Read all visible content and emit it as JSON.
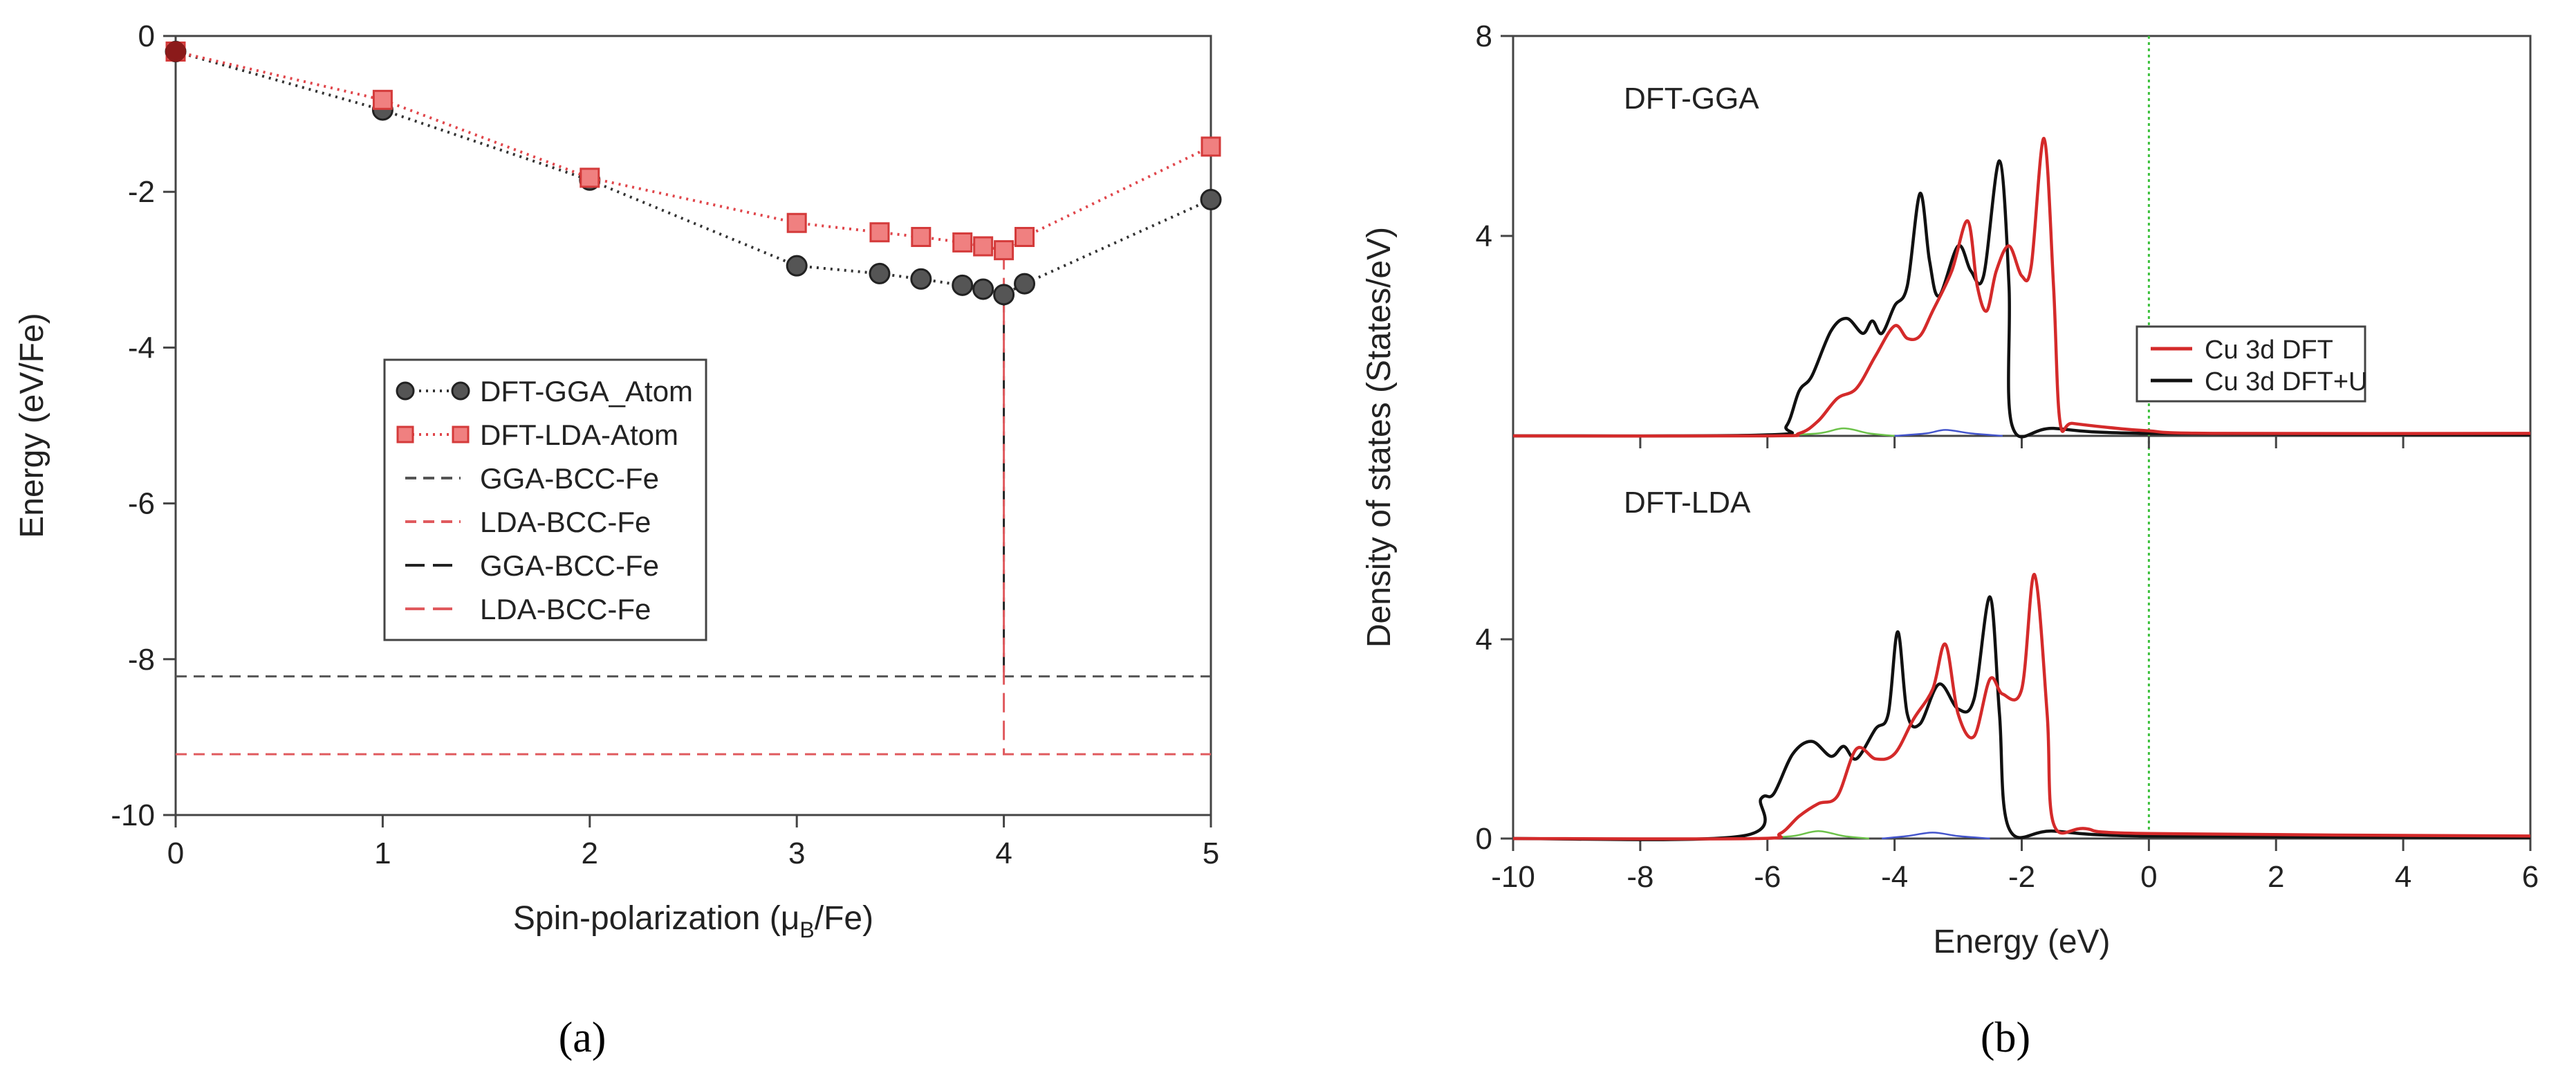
{
  "chart_data": [
    {
      "type": "line",
      "panel_label": "a",
      "xlabel_parts": [
        "Spin-polarization (μ",
        "B",
        "/Fe)"
      ],
      "ylabel": "Energy (eV/Fe)",
      "xlim": [
        0,
        5
      ],
      "ylim": [
        -10,
        0
      ],
      "xticks": [
        "0",
        "1",
        "2",
        "3",
        "4",
        "5"
      ],
      "yticks": [
        "0",
        "-2",
        "-4",
        "-6",
        "-8",
        "-10"
      ],
      "legend_position": "center-left",
      "series": [
        {
          "name": "DFT-GGA_Atom",
          "color": "#333333",
          "marker": "circle",
          "style": "dotted",
          "x": [
            0,
            1,
            2,
            3,
            3.4,
            3.6,
            3.8,
            3.9,
            4,
            4.1,
            5
          ],
          "y": [
            -0.2,
            -0.95,
            -1.85,
            -2.95,
            -3.05,
            -3.12,
            -3.2,
            -3.25,
            -3.32,
            -3.18,
            -2.1
          ]
        },
        {
          "name": "DFT-LDA-Atom",
          "color": "#e0454a",
          "marker": "square",
          "style": "dotted",
          "x": [
            0,
            1,
            2,
            3,
            3.4,
            3.6,
            3.8,
            3.9,
            4,
            4.1,
            5
          ],
          "y": [
            -0.2,
            -0.82,
            -1.82,
            -2.4,
            -2.52,
            -2.58,
            -2.65,
            -2.7,
            -2.75,
            -2.58,
            -1.42
          ]
        },
        {
          "name": "GGA-BCC-Fe",
          "color": "#555555",
          "style": "dashed-short",
          "hline": -8.22
        },
        {
          "name": "LDA-BCC-Fe",
          "color": "#e05a5e",
          "style": "dashed-short",
          "hline": -9.22
        },
        {
          "name": "GGA-BCC-Fe",
          "color": "#222222",
          "style": "dashed-long",
          "vline": {
            "x": 4,
            "y": [
              -3.3,
              -8.22
            ]
          }
        },
        {
          "name": "LDA-BCC-Fe",
          "color": "#e05a5e",
          "style": "dashed-long",
          "vline": {
            "x": 4,
            "y": [
              -2.75,
              -9.22
            ]
          }
        }
      ]
    },
    {
      "type": "line",
      "panel_label": "b",
      "xlabel": "Energy (eV)",
      "ylabel": "Density of states (States/eV)",
      "xlim": [
        -10,
        6
      ],
      "xticks": [
        "-10",
        "-8",
        "-6",
        "-4",
        "-2",
        "0",
        "2",
        "4",
        "6"
      ],
      "fermi_line_x": 0,
      "fermi_color": "#3cc13c",
      "legend_position": "right",
      "legend": [
        {
          "name": "Cu 3d DFT",
          "color": "#d42a2a"
        },
        {
          "name": "Cu 3d DFT+U",
          "color": "#111111"
        }
      ],
      "panels": [
        {
          "label": "DFT-GGA",
          "ylim": [
            0,
            8
          ],
          "yticks": [
            "8",
            "4"
          ],
          "series": [
            {
              "name": "Cu 3d DFT",
              "color": "#d42a2a",
              "x": [
                -10,
                -6,
                -5.5,
                -5.2,
                -4.9,
                -4.6,
                -4.3,
                -4.0,
                -3.8,
                -3.6,
                -3.4,
                -3.1,
                -2.85,
                -2.7,
                -2.55,
                -2.4,
                -2.2,
                -2.0,
                -1.85,
                -1.65,
                -1.5,
                -1.4,
                -1.2,
                -0.5,
                0,
                1,
                6
              ],
              "y": [
                0,
                0,
                0.05,
                0.3,
                0.75,
                0.95,
                1.6,
                2.2,
                1.95,
                2.0,
                2.5,
                3.3,
                4.3,
                3.0,
                2.5,
                3.3,
                3.8,
                3.2,
                3.4,
                5.95,
                3.0,
                0.3,
                0.25,
                0.15,
                0.1,
                0.05,
                0.05
              ]
            },
            {
              "name": "Cu 3d DFT+U",
              "color": "#111111",
              "x": [
                -10,
                -6,
                -5.7,
                -5.5,
                -5.3,
                -5.0,
                -4.75,
                -4.5,
                -4.35,
                -4.2,
                -4.0,
                -3.8,
                -3.6,
                -3.45,
                -3.3,
                -3.0,
                -2.8,
                -2.6,
                -2.35,
                -2.2,
                -2.15,
                -1.5,
                0,
                6
              ],
              "y": [
                0,
                0.02,
                0.2,
                0.9,
                1.2,
                2.1,
                2.35,
                2.05,
                2.3,
                2.05,
                2.6,
                3.0,
                4.85,
                3.5,
                2.8,
                3.8,
                3.3,
                3.2,
                5.5,
                3.0,
                0.2,
                0.15,
                0.05,
                0.02
              ]
            },
            {
              "name": "other-green",
              "color": "#6cc24a",
              "x": [
                -6,
                -5.2,
                -4.8,
                -4.4,
                -4.0
              ],
              "y": [
                0,
                0.05,
                0.15,
                0.05,
                0
              ]
            },
            {
              "name": "other-blue",
              "color": "#4455cc",
              "x": [
                -4,
                -3.5,
                -3.2,
                -2.8,
                -2.3
              ],
              "y": [
                0,
                0.05,
                0.12,
                0.05,
                0
              ]
            }
          ]
        },
        {
          "label": "DFT-LDA",
          "ylim": [
            0,
            8
          ],
          "yticks": [
            "4",
            "0"
          ],
          "series": [
            {
              "name": "Cu 3d DFT",
              "color": "#d42a2a",
              "x": [
                -10,
                -6.2,
                -5.8,
                -5.5,
                -5.2,
                -4.9,
                -4.6,
                -4.3,
                -4.0,
                -3.7,
                -3.4,
                -3.2,
                -3.0,
                -2.75,
                -2.5,
                -2.3,
                -2.0,
                -1.8,
                -1.6,
                -1.5,
                -1.0,
                0,
                6
              ],
              "y": [
                0,
                0,
                0.1,
                0.45,
                0.7,
                0.85,
                1.8,
                1.6,
                1.7,
                2.4,
                3.0,
                3.9,
                2.5,
                2.05,
                3.2,
                2.9,
                3.0,
                5.3,
                2.5,
                0.3,
                0.2,
                0.1,
                0.05
              ]
            },
            {
              "name": "Cu 3d DFT+U",
              "color": "#111111",
              "x": [
                -10,
                -6.4,
                -6.1,
                -5.9,
                -5.6,
                -5.3,
                -5.0,
                -4.8,
                -4.6,
                -4.3,
                -4.1,
                -3.95,
                -3.8,
                -3.6,
                -3.3,
                -3.0,
                -2.75,
                -2.5,
                -2.35,
                -2.2,
                -1.5,
                0,
                6
              ],
              "y": [
                0,
                0.05,
                0.8,
                0.9,
                1.7,
                1.95,
                1.65,
                1.85,
                1.6,
                2.2,
                2.5,
                4.15,
                2.5,
                2.3,
                3.1,
                2.6,
                2.8,
                4.85,
                2.5,
                0.2,
                0.15,
                0.05,
                0.02
              ]
            },
            {
              "name": "other-green",
              "color": "#6cc24a",
              "x": [
                -6.2,
                -5.6,
                -5.2,
                -4.8,
                -4.4
              ],
              "y": [
                0,
                0.05,
                0.15,
                0.05,
                0
              ]
            },
            {
              "name": "other-blue",
              "color": "#4455cc",
              "x": [
                -4.2,
                -3.8,
                -3.4,
                -3.0,
                -2.5
              ],
              "y": [
                0,
                0.05,
                0.12,
                0.05,
                0
              ]
            }
          ]
        }
      ]
    }
  ],
  "captions": {
    "a": "(a)",
    "b": "(b)"
  }
}
